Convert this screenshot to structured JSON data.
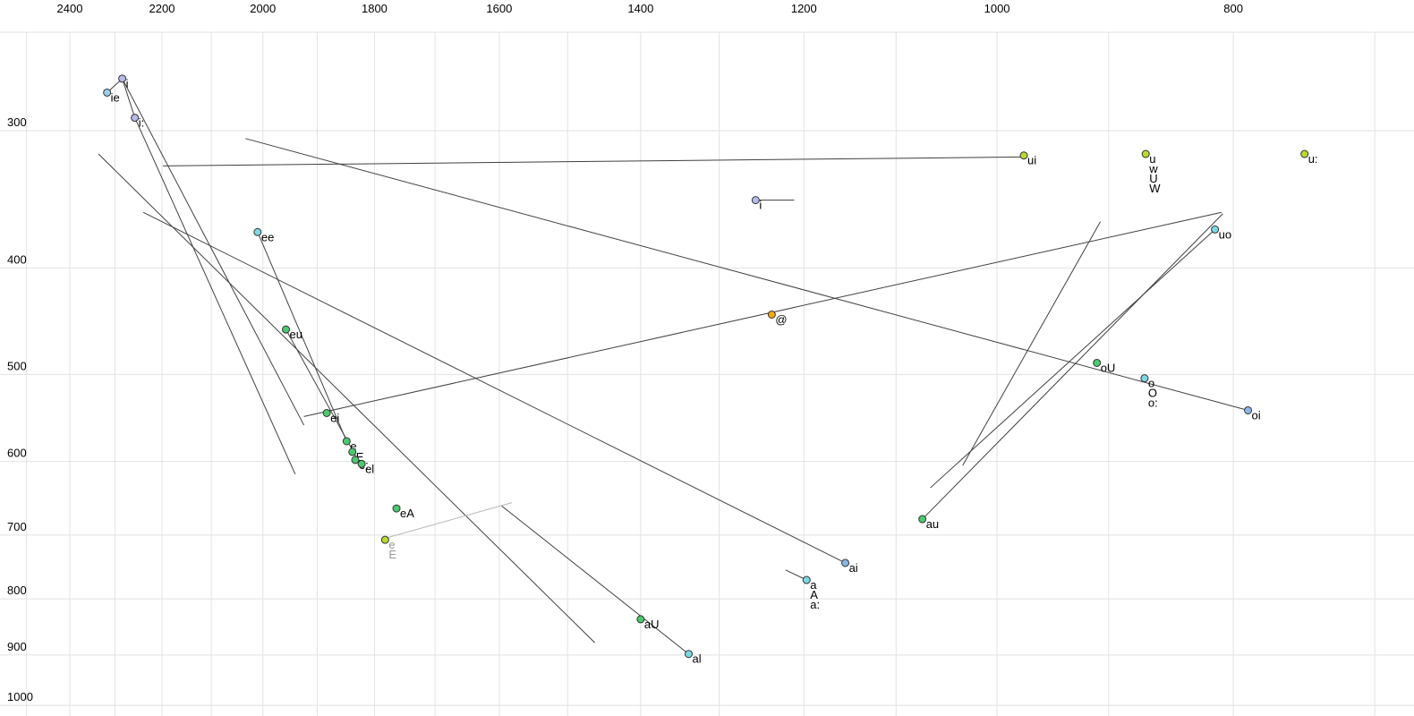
{
  "chart_data": {
    "type": "scatter",
    "title": "",
    "xlabel": "",
    "ylabel": "",
    "x_axis": {
      "scale": "log",
      "reversed": true,
      "labeled_ticks": [
        2400,
        2200,
        2000,
        1800,
        1600,
        1400,
        1200,
        1000,
        800
      ],
      "grid_min": 700,
      "grid_max": 2500,
      "grid_step": 100
    },
    "y_axis": {
      "scale": "log",
      "reversed": true,
      "labeled_ticks": [
        300,
        400,
        500,
        600,
        700,
        800,
        900,
        1000
      ],
      "grid_step": 100
    },
    "points": [
      {
        "labels": [
          "ie"
        ],
        "f2": 2317,
        "f1": 277,
        "color": "lightblue"
      },
      {
        "labels": [
          "i"
        ],
        "f2": 2284,
        "f1": 269,
        "color": "lavender"
      },
      {
        "labels": [
          "i:"
        ],
        "f2": 2257,
        "f1": 292,
        "color": "lavender"
      },
      {
        "labels": [
          "ee"
        ],
        "f2": 2010,
        "f1": 371,
        "color": "cyan"
      },
      {
        "labels": [
          "eu"
        ],
        "f2": 1957,
        "f1": 455,
        "color": "green"
      },
      {
        "labels": [
          "ei"
        ],
        "f2": 1883,
        "f1": 542,
        "color": "green"
      },
      {
        "labels": [
          "e"
        ],
        "f2": 1848,
        "f1": 575,
        "color": "green"
      },
      {
        "labels": [
          "E"
        ],
        "f2": 1838,
        "f1": 588,
        "color": "green"
      },
      {
        "labels": [
          "e:"
        ],
        "f2": 1833,
        "f1": 598,
        "color": "green"
      },
      {
        "labels": [
          "el"
        ],
        "f2": 1822,
        "f1": 603,
        "color": "green"
      },
      {
        "labels": [
          "eA"
        ],
        "f2": 1763,
        "f1": 662,
        "color": "green"
      },
      {
        "labels": [
          "e",
          "E"
        ],
        "f2": 1782,
        "f1": 707,
        "color": "yellowgreen",
        "label_color": "gray"
      },
      {
        "labels": [
          "aU"
        ],
        "f2": 1400,
        "f1": 835,
        "color": "green"
      },
      {
        "labels": [
          "al"
        ],
        "f2": 1338,
        "f1": 898,
        "color": "cyan"
      },
      {
        "labels": [
          "ai"
        ],
        "f2": 1154,
        "f1": 742,
        "color": "blue"
      },
      {
        "labels": [
          "a",
          "A",
          "a:"
        ],
        "f2": 1197,
        "f1": 769,
        "color": "cyan"
      },
      {
        "labels": [
          "@"
        ],
        "f2": 1237,
        "f1": 441,
        "color": "orange"
      },
      {
        "labels": [
          "i"
        ],
        "f2": 1256,
        "f1": 347,
        "color": "lavender"
      },
      {
        "labels": [
          "ui"
        ],
        "f2": 975,
        "f1": 316,
        "color": "yellowgreen"
      },
      {
        "labels": [
          "u",
          "w",
          "U",
          "W"
        ],
        "f2": 869,
        "f1": 315,
        "color": "yellowgreen"
      },
      {
        "labels": [
          "u:"
        ],
        "f2": 748,
        "f1": 315,
        "color": "yellowgreen"
      },
      {
        "labels": [
          "uo"
        ],
        "f2": 814,
        "f1": 369,
        "color": "cyan"
      },
      {
        "labels": [
          "oU"
        ],
        "f2": 910,
        "f1": 488,
        "color": "green"
      },
      {
        "labels": [
          "o",
          "O",
          "o:"
        ],
        "f2": 870,
        "f1": 504,
        "color": "cyan"
      },
      {
        "labels": [
          "oi"
        ],
        "f2": 789,
        "f1": 539,
        "color": "blue"
      },
      {
        "labels": [
          "au"
        ],
        "f2": 1073,
        "f1": 677,
        "color": "green"
      }
    ],
    "trajectories": [
      {
        "from": [
          2198,
          323
        ],
        "to": [
          977,
          317
        ],
        "style": "dark"
      },
      {
        "from": [
          2033,
          305
        ],
        "to": [
          789,
          539
        ],
        "style": "dark"
      },
      {
        "from": [
          1924,
          546
        ],
        "to": [
          809,
          356
        ],
        "style": "dark"
      },
      {
        "from": [
          2336,
          315
        ],
        "to": [
          1462,
          877
        ],
        "style": "dark"
      },
      {
        "from": [
          2239,
          356
        ],
        "to": [
          1154,
          742
        ],
        "style": "dark"
      },
      {
        "from": [
          2284,
          269
        ],
        "to": [
          1924,
          556
        ],
        "style": "dark"
      },
      {
        "from": [
          2257,
          292
        ],
        "to": [
          1940,
          616
        ],
        "style": "dark"
      },
      {
        "from": [
          2317,
          277
        ],
        "to": [
          2284,
          269
        ],
        "style": "dark"
      },
      {
        "from": [
          2284,
          269
        ],
        "to": [
          2257,
          292
        ],
        "style": "dark"
      },
      {
        "from": [
          2010,
          371
        ],
        "to": [
          1848,
          575
        ],
        "style": "dark"
      },
      {
        "from": [
          1957,
          455
        ],
        "to": [
          1821,
          608
        ],
        "style": "dark"
      },
      {
        "from": [
          1256,
          347
        ],
        "to": [
          1211,
          347
        ],
        "style": "dark"
      },
      {
        "from": [
          1073,
          677
        ],
        "to": [
          808,
          357
        ],
        "style": "dark"
      },
      {
        "from": [
          814,
          369
        ],
        "to": [
          1065,
          634
        ],
        "style": "dark"
      },
      {
        "from": [
          907,
          363
        ],
        "to": [
          1033,
          605
        ],
        "style": "dark"
      },
      {
        "from": [
          1597,
          658
        ],
        "to": [
          1338,
          898
        ],
        "style": "dark"
      },
      {
        "from": [
          1779,
          704
        ],
        "to": [
          1581,
          654
        ],
        "style": "gray"
      },
      {
        "from": [
          1197,
          769
        ],
        "to": [
          1221,
          753
        ],
        "style": "dark"
      }
    ],
    "colors": {
      "lightblue": "#9cd0ec",
      "lavender": "#b6b9ea",
      "cyan": "#7ed8e4",
      "green": "#4cc96f",
      "yellowgreen": "#b8d930",
      "orange": "#f3a811",
      "blue": "#8ab6e8",
      "dot_stroke": "#333333",
      "line_dark": "#404040",
      "line_gray": "#b8b8b8",
      "grid": "#e2e2e2",
      "tick_text": "#000000",
      "gray_label": "#999999"
    }
  }
}
